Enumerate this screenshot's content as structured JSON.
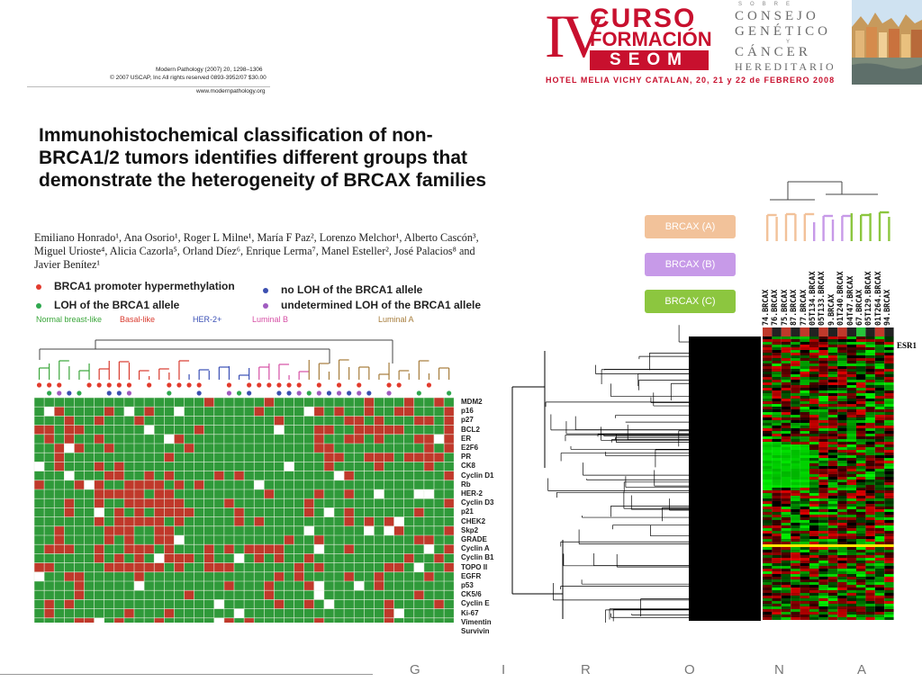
{
  "header": {
    "roman": "IV",
    "curso": "CURSO",
    "formacion": "FORMACIÓN",
    "seom": "SEOM",
    "consejo_lines": [
      "CONSEJO",
      "GENÉTICO",
      "CÁNCER",
      "HEREDITARIO"
    ],
    "consejo_connectors": [
      "SOBRE",
      "Y"
    ],
    "hotel": "HOTEL MELIA VICHY CATALAN, 20, 21 y 22 de FEBRERO 2008"
  },
  "paper": {
    "meta_lines": [
      "Modern Pathology (2007) 20, 1298–1306",
      "© 2007 USCAP, Inc   All rights reserved 0893-3952/07 $30.00",
      "www.modernpathology.org"
    ],
    "title": "Immunohistochemical classification of non-BRCA1/2 tumors identifies different groups that demonstrate the heterogeneity of BRCAX families",
    "authors": "Emiliano Honrado¹, Ana Osorio¹, Roger L Milne¹, María F Paz², Lorenzo Melchor¹, Alberto Cascón³, Miguel Urioste⁴, Alicia Cazorla⁵, Orland Díez⁶, Enrique Lerma⁷, Manel Esteller², José Palacios⁸ and Javier Benítez¹"
  },
  "legend": [
    {
      "text": "BRCA1 promoter hypermethylation",
      "color": "#e23b2e"
    },
    {
      "text": "LOH of the BRCA1 allele",
      "color": "#2fa84f"
    },
    {
      "text": "no LOH of the BRCA1 allele",
      "color": "#3c4fb0"
    },
    {
      "text": "undetermined LOH of the BRCA1 allele",
      "color": "#a05cc0"
    }
  ],
  "groups": [
    {
      "label": "Normal breast-like",
      "color": "#3aa63a"
    },
    {
      "label": "Basal-like",
      "color": "#d93a2e"
    },
    {
      "label": "HER-2+",
      "color": "#3a4fb5"
    },
    {
      "label": "Luminal B",
      "color": "#d64fa5"
    },
    {
      "label": "Luminal A",
      "color": "#a67c3a"
    }
  ],
  "markers": [
    "MDM2",
    "p16",
    "p27",
    "BCL2",
    "ER",
    "E2F6",
    "PR",
    "CK8",
    "Cyclin D1",
    "Rb",
    "HER-2",
    "Cyclin D3",
    "p21",
    "CHEK2",
    "Skp2",
    "GRADE",
    "Cyclin A",
    "Cyclin B1",
    "TOPO II",
    "EGFR",
    "p53",
    "CK5/6",
    "Cyclin E",
    "Ki-67",
    "Vimentin",
    "Survivin"
  ],
  "brcax": [
    {
      "label": "BRCAX (A)",
      "color": "#f2c29a"
    },
    {
      "label": "BRCAX (B)",
      "color": "#c79ae8"
    },
    {
      "label": "BRCAX (C)",
      "color": "#8cc63f"
    }
  ],
  "samples": [
    "74.BRCAX",
    "76.BRCAX",
    "75.BRCAX",
    "87.BRCAX",
    "77.BRCAX",
    "05T134.BRCAX",
    "05T133.BRCAX",
    "9.BRCAX",
    "01T240.BRCAX",
    "04T47.BRCAX",
    "67.BRCAX",
    "05T129.BRCAX",
    "01T264.BRCAX",
    "94.BRCAX"
  ],
  "gene_label": "ESR1",
  "footer_letters": [
    "G",
    "I",
    "R",
    "O",
    "N",
    "A"
  ]
}
